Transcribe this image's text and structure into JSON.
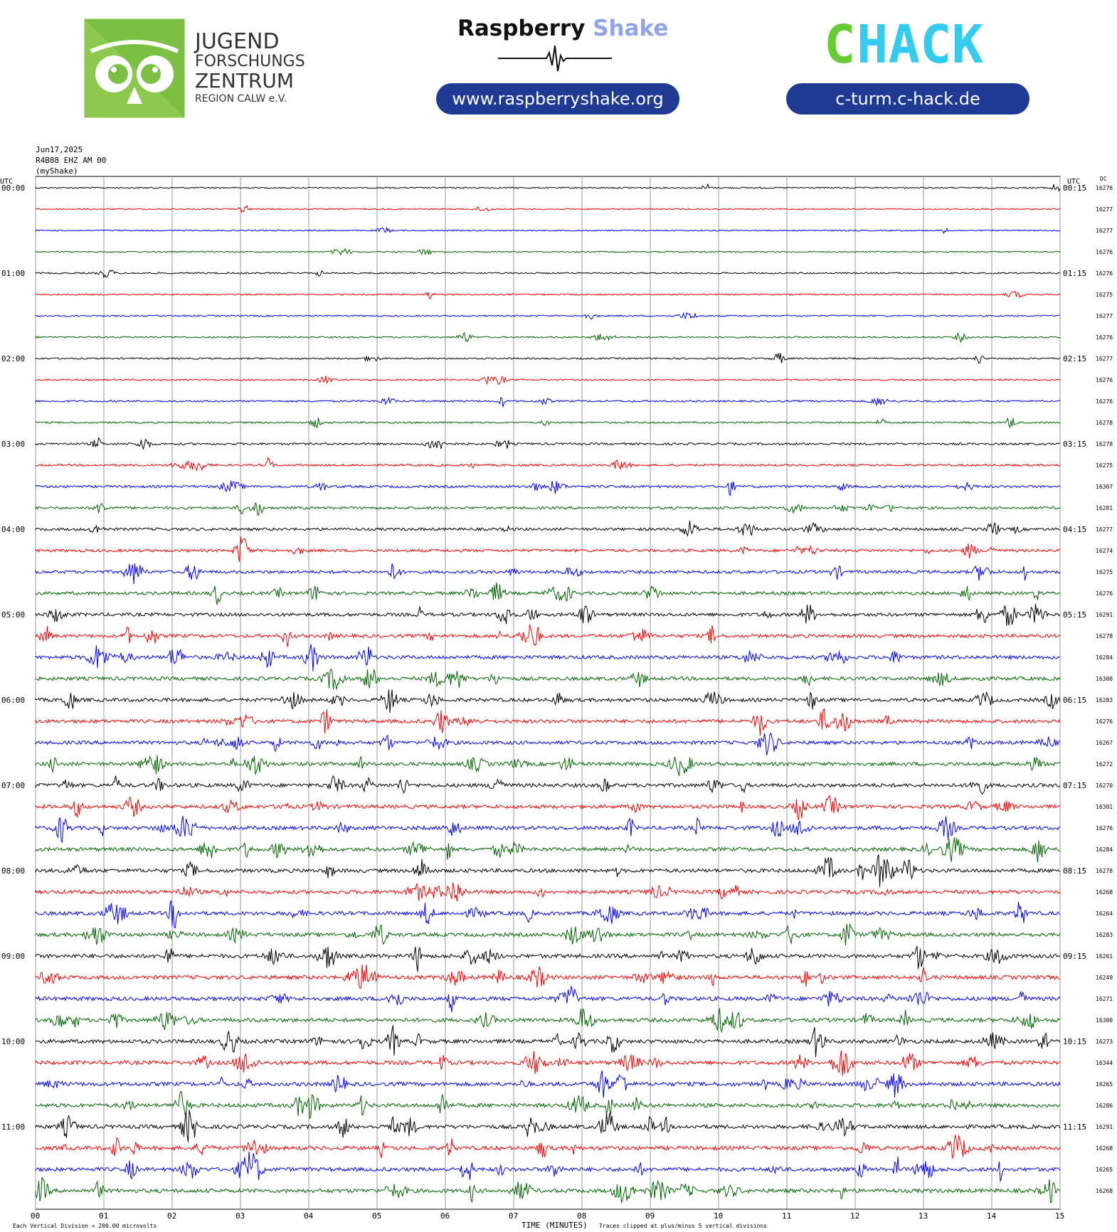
{
  "header": {
    "jfz_logo": {
      "line1": "JUGEND",
      "line2": "FORSCHUNGS",
      "line3": "ZENTRUM",
      "line4": "REGION CALW e.V."
    },
    "rs_logo": {
      "word1": "Raspberry",
      "word2": "Shake",
      "url": "www.raspberryshake.org"
    },
    "chack_logo": {
      "text": "CHACK",
      "url": "c-turm.c-hack.de"
    },
    "colors": {
      "jfz_green": "#7bc043",
      "rs_blue": "#8fa3e8",
      "pill_blue": "#1f3a93",
      "chack_green": "#66cc33",
      "chack_cyan": "#33ccee"
    }
  },
  "plot_header": {
    "date": "Jun17,2025",
    "station": "R4B88 EHZ AM 00",
    "network": "(myShake)"
  },
  "axis": {
    "left_label": "UTC",
    "right_label": "UTC",
    "dc_label": "DC",
    "xlabel": "TIME (MINUTES)",
    "x_ticks": [
      "00",
      "01",
      "02",
      "03",
      "04",
      "05",
      "06",
      "07",
      "08",
      "09",
      "10",
      "11",
      "12",
      "13",
      "14",
      "15"
    ],
    "footer_left": "Each Vertical Division = 200.00 microvolts",
    "footer_right": "Traces clipped at plus/minus 5 vertical divisions"
  },
  "chart_data": {
    "type": "line",
    "title": "",
    "x_range_minutes": [
      0,
      15
    ],
    "rows": 48,
    "row_interval_minutes": 15,
    "colors": [
      "#000000",
      "#ff0000",
      "#0000ff",
      "#006600"
    ],
    "left_hour_labels": [
      "00:00",
      "01:00",
      "02:00",
      "03:00",
      "04:00",
      "05:00",
      "06:00",
      "07:00",
      "08:00",
      "09:00",
      "10:00",
      "11:00"
    ],
    "right_hour_labels": [
      "00:15",
      "01:15",
      "02:15",
      "03:15",
      "04:15",
      "05:15",
      "06:15",
      "07:15",
      "08:15",
      "09:15",
      "10:15",
      "11:15"
    ],
    "dc_offsets": [
      16276,
      16277,
      16277,
      16276,
      16276,
      16275,
      16277,
      16276,
      16277,
      16276,
      16276,
      16278,
      16278,
      16275,
      16307,
      16281,
      16277,
      16274,
      16275,
      16276,
      16291,
      16278,
      16284,
      16300,
      16283,
      16276,
      16267,
      16272,
      16270,
      16301,
      16276,
      16284,
      16278,
      16268,
      16264,
      16283,
      16261,
      16249,
      16271,
      16300,
      16273,
      16344,
      16265,
      16286,
      16291,
      16268,
      16265,
      16268
    ],
    "activity_per_row": [
      0.15,
      0.15,
      0.15,
      0.15,
      0.2,
      0.2,
      0.2,
      0.25,
      0.25,
      0.25,
      0.3,
      0.3,
      0.4,
      0.4,
      0.5,
      0.55,
      0.6,
      0.65,
      0.7,
      0.75,
      0.8,
      0.8,
      0.85,
      0.85,
      0.85,
      0.85,
      0.85,
      0.85,
      0.9,
      0.9,
      0.9,
      0.9,
      0.9,
      0.9,
      0.9,
      0.9,
      0.95,
      0.95,
      0.95,
      0.95,
      0.95,
      0.95,
      0.95,
      0.95,
      0.95,
      0.95,
      0.95,
      0.95
    ],
    "grid": true
  }
}
